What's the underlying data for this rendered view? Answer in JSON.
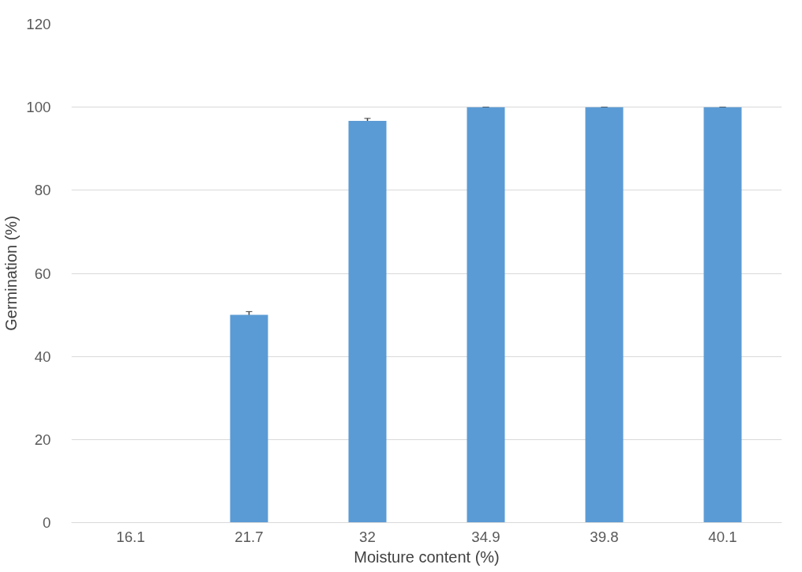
{
  "chart_data": {
    "type": "bar",
    "xlabel": "Moisture content (%)",
    "ylabel": "Germination (%)",
    "categories": [
      "16.1",
      "21.7",
      "32",
      "34.9",
      "39.8",
      "40.1"
    ],
    "values": [
      0,
      50,
      96.7,
      100,
      100,
      100
    ],
    "errors": [
      0,
      0.8,
      0.6,
      0,
      0,
      0
    ],
    "color": "#5b9bd5",
    "ylim": [
      0,
      120
    ],
    "yticks": [
      0,
      20,
      40,
      60,
      80,
      100,
      120
    ],
    "grid": "y"
  }
}
